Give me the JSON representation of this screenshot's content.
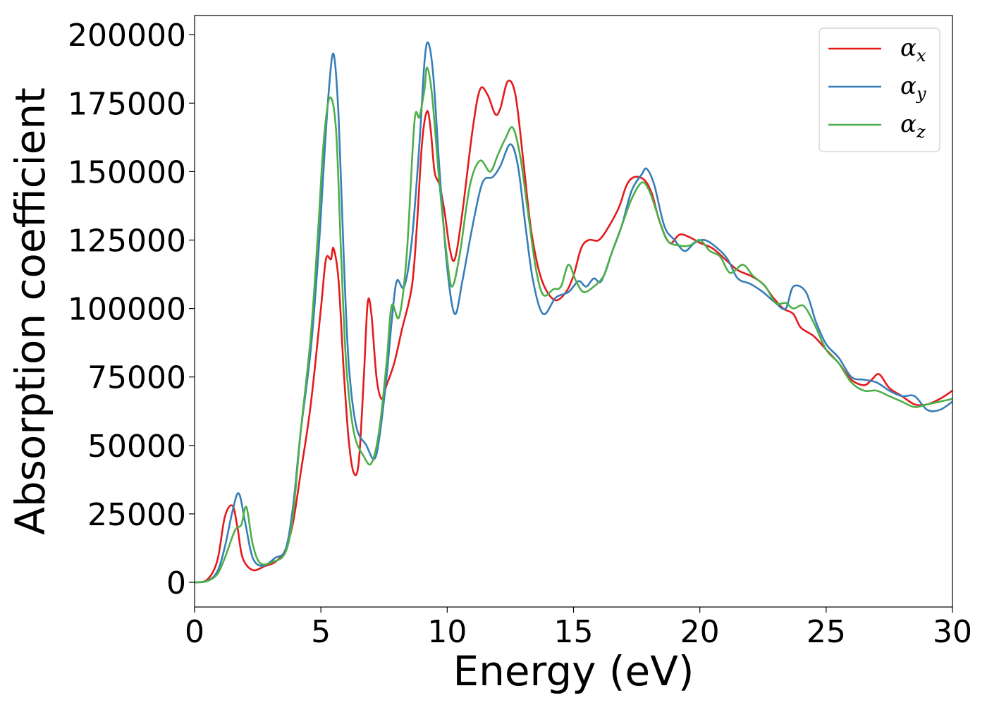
{
  "chart_data": {
    "type": "line",
    "xlabel": "Energy (eV)",
    "ylabel": "Absorption coefficient",
    "xlim": [
      0,
      30
    ],
    "ylim": [
      -9000,
      207000
    ],
    "x_ticks": [
      0,
      5,
      10,
      15,
      20,
      25,
      30
    ],
    "x_tick_labels": [
      "0",
      "5",
      "10",
      "15",
      "20",
      "25",
      "30"
    ],
    "y_ticks": [
      0,
      25000,
      50000,
      75000,
      100000,
      125000,
      150000,
      175000,
      200000
    ],
    "y_tick_labels": [
      "0",
      "25000",
      "50000",
      "75000",
      "100000",
      "125000",
      "150000",
      "175000",
      "200000"
    ],
    "grid": false,
    "legend": {
      "position": "top-right",
      "entries": [
        {
          "base": "α",
          "sub": "x"
        },
        {
          "base": "α",
          "sub": "y"
        },
        {
          "base": "α",
          "sub": "z"
        }
      ]
    },
    "series": [
      {
        "color": "#e41a1c",
        "points": [
          [
            0,
            0
          ],
          [
            0.5,
            1000
          ],
          [
            0.9,
            8000
          ],
          [
            1.2,
            24000
          ],
          [
            1.5,
            28000
          ],
          [
            1.7,
            20000
          ],
          [
            1.9,
            9000
          ],
          [
            2.3,
            4500
          ],
          [
            2.8,
            6000
          ],
          [
            3.2,
            7500
          ],
          [
            3.6,
            12000
          ],
          [
            3.9,
            22000
          ],
          [
            4.2,
            40000
          ],
          [
            4.6,
            65000
          ],
          [
            5.0,
            100000
          ],
          [
            5.2,
            118000
          ],
          [
            5.4,
            118000
          ],
          [
            5.5,
            122000
          ],
          [
            5.7,
            110000
          ],
          [
            5.9,
            78000
          ],
          [
            6.1,
            52000
          ],
          [
            6.3,
            40000
          ],
          [
            6.5,
            44000
          ],
          [
            6.7,
            75000
          ],
          [
            6.85,
            102000
          ],
          [
            7.0,
            98000
          ],
          [
            7.2,
            75000
          ],
          [
            7.4,
            67000
          ],
          [
            7.6,
            72000
          ],
          [
            7.9,
            80000
          ],
          [
            8.2,
            92000
          ],
          [
            8.6,
            108000
          ],
          [
            8.8,
            130000
          ],
          [
            9.0,
            160000
          ],
          [
            9.2,
            172000
          ],
          [
            9.35,
            165000
          ],
          [
            9.5,
            150000
          ],
          [
            9.7,
            145000
          ],
          [
            9.9,
            135000
          ],
          [
            10.1,
            122000
          ],
          [
            10.3,
            118000
          ],
          [
            10.6,
            135000
          ],
          [
            11.0,
            165000
          ],
          [
            11.3,
            180000
          ],
          [
            11.6,
            178000
          ],
          [
            11.9,
            171000
          ],
          [
            12.1,
            173000
          ],
          [
            12.4,
            183000
          ],
          [
            12.7,
            178000
          ],
          [
            13.0,
            155000
          ],
          [
            13.3,
            130000
          ],
          [
            13.6,
            115000
          ],
          [
            13.9,
            107000
          ],
          [
            14.3,
            103000
          ],
          [
            14.7,
            106000
          ],
          [
            15.0,
            112000
          ],
          [
            15.3,
            122000
          ],
          [
            15.6,
            125000
          ],
          [
            16.0,
            125000
          ],
          [
            16.4,
            130000
          ],
          [
            16.8,
            137000
          ],
          [
            17.1,
            145000
          ],
          [
            17.4,
            148000
          ],
          [
            17.8,
            147000
          ],
          [
            18.1,
            142000
          ],
          [
            18.4,
            132000
          ],
          [
            18.8,
            124000
          ],
          [
            19.2,
            127000
          ],
          [
            19.6,
            126000
          ],
          [
            20.0,
            124000
          ],
          [
            20.5,
            122000
          ],
          [
            21.0,
            118000
          ],
          [
            21.5,
            114000
          ],
          [
            22.0,
            112000
          ],
          [
            22.5,
            109000
          ],
          [
            22.9,
            104000
          ],
          [
            23.3,
            100000
          ],
          [
            23.7,
            98000
          ],
          [
            24.0,
            93000
          ],
          [
            24.5,
            90000
          ],
          [
            25.0,
            85000
          ],
          [
            25.5,
            80000
          ],
          [
            26.0,
            74000
          ],
          [
            26.5,
            72000
          ],
          [
            26.8,
            74000
          ],
          [
            27.1,
            76000
          ],
          [
            27.5,
            71000
          ],
          [
            28.0,
            68000
          ],
          [
            28.5,
            65000
          ],
          [
            29.0,
            65000
          ],
          [
            29.5,
            67000
          ],
          [
            30.0,
            70000
          ]
        ]
      },
      {
        "color": "#377eb8",
        "points": [
          [
            0,
            0
          ],
          [
            0.5,
            500
          ],
          [
            0.9,
            4000
          ],
          [
            1.2,
            13000
          ],
          [
            1.5,
            26000
          ],
          [
            1.75,
            32500
          ],
          [
            2.0,
            22000
          ],
          [
            2.3,
            9000
          ],
          [
            2.7,
            6000
          ],
          [
            3.2,
            9000
          ],
          [
            3.6,
            12000
          ],
          [
            3.9,
            28000
          ],
          [
            4.2,
            55000
          ],
          [
            4.6,
            85000
          ],
          [
            4.9,
            120000
          ],
          [
            5.1,
            150000
          ],
          [
            5.3,
            178000
          ],
          [
            5.5,
            193000
          ],
          [
            5.7,
            170000
          ],
          [
            5.9,
            120000
          ],
          [
            6.1,
            80000
          ],
          [
            6.4,
            57000
          ],
          [
            6.8,
            50000
          ],
          [
            7.1,
            45000
          ],
          [
            7.3,
            52000
          ],
          [
            7.6,
            75000
          ],
          [
            7.8,
            95000
          ],
          [
            8.0,
            110000
          ],
          [
            8.3,
            108000
          ],
          [
            8.6,
            125000
          ],
          [
            8.9,
            160000
          ],
          [
            9.1,
            190000
          ],
          [
            9.25,
            197000
          ],
          [
            9.45,
            185000
          ],
          [
            9.7,
            150000
          ],
          [
            10.0,
            115000
          ],
          [
            10.3,
            98000
          ],
          [
            10.6,
            110000
          ],
          [
            11.0,
            130000
          ],
          [
            11.4,
            146000
          ],
          [
            11.8,
            148000
          ],
          [
            12.1,
            152000
          ],
          [
            12.5,
            160000
          ],
          [
            12.8,
            152000
          ],
          [
            13.1,
            130000
          ],
          [
            13.4,
            110000
          ],
          [
            13.8,
            98000
          ],
          [
            14.3,
            104000
          ],
          [
            14.8,
            106000
          ],
          [
            15.2,
            110000
          ],
          [
            15.5,
            108000
          ],
          [
            15.8,
            111000
          ],
          [
            16.1,
            110000
          ],
          [
            16.5,
            120000
          ],
          [
            16.9,
            130000
          ],
          [
            17.3,
            143000
          ],
          [
            17.7,
            149000
          ],
          [
            17.9,
            151000
          ],
          [
            18.2,
            145000
          ],
          [
            18.6,
            130000
          ],
          [
            19.0,
            125000
          ],
          [
            19.4,
            121000
          ],
          [
            19.8,
            124000
          ],
          [
            20.2,
            125000
          ],
          [
            20.7,
            122000
          ],
          [
            21.1,
            118000
          ],
          [
            21.5,
            111000
          ],
          [
            22.0,
            109000
          ],
          [
            22.5,
            106000
          ],
          [
            23.0,
            102000
          ],
          [
            23.4,
            100000
          ],
          [
            23.7,
            108000
          ],
          [
            24.2,
            106000
          ],
          [
            24.6,
            95000
          ],
          [
            25.0,
            87000
          ],
          [
            25.5,
            82000
          ],
          [
            26.0,
            75000
          ],
          [
            26.5,
            74000
          ],
          [
            27.0,
            73000
          ],
          [
            27.5,
            70000
          ],
          [
            28.0,
            68000
          ],
          [
            28.5,
            68000
          ],
          [
            29.0,
            63000
          ],
          [
            29.5,
            63000
          ],
          [
            30.0,
            66000
          ]
        ]
      },
      {
        "color": "#4daf4a",
        "points": [
          [
            0,
            0
          ],
          [
            0.5,
            500
          ],
          [
            0.9,
            3000
          ],
          [
            1.2,
            9000
          ],
          [
            1.6,
            19000
          ],
          [
            1.85,
            21000
          ],
          [
            2.05,
            27500
          ],
          [
            2.3,
            14000
          ],
          [
            2.6,
            7000
          ],
          [
            3.1,
            7500
          ],
          [
            3.6,
            11000
          ],
          [
            3.9,
            25000
          ],
          [
            4.2,
            55000
          ],
          [
            4.6,
            90000
          ],
          [
            4.9,
            130000
          ],
          [
            5.1,
            160000
          ],
          [
            5.35,
            177000
          ],
          [
            5.6,
            165000
          ],
          [
            5.8,
            120000
          ],
          [
            6.0,
            80000
          ],
          [
            6.3,
            55000
          ],
          [
            6.7,
            46000
          ],
          [
            7.0,
            43500
          ],
          [
            7.3,
            55000
          ],
          [
            7.6,
            80000
          ],
          [
            7.8,
            101000
          ],
          [
            8.1,
            97000
          ],
          [
            8.4,
            120000
          ],
          [
            8.7,
            168000
          ],
          [
            8.9,
            170000
          ],
          [
            9.1,
            180000
          ],
          [
            9.2,
            188000
          ],
          [
            9.4,
            178000
          ],
          [
            9.7,
            145000
          ],
          [
            10.0,
            118000
          ],
          [
            10.2,
            108000
          ],
          [
            10.5,
            120000
          ],
          [
            10.9,
            145000
          ],
          [
            11.3,
            154000
          ],
          [
            11.7,
            150000
          ],
          [
            12.0,
            156000
          ],
          [
            12.3,
            162000
          ],
          [
            12.6,
            166000
          ],
          [
            12.9,
            155000
          ],
          [
            13.2,
            135000
          ],
          [
            13.5,
            115000
          ],
          [
            13.8,
            105000
          ],
          [
            14.2,
            107000
          ],
          [
            14.5,
            108000
          ],
          [
            14.8,
            116000
          ],
          [
            15.1,
            110000
          ],
          [
            15.4,
            106000
          ],
          [
            15.8,
            108000
          ],
          [
            16.2,
            112000
          ],
          [
            16.5,
            120000
          ],
          [
            16.9,
            130000
          ],
          [
            17.3,
            140000
          ],
          [
            17.7,
            146000
          ],
          [
            18.0,
            143000
          ],
          [
            18.3,
            135000
          ],
          [
            18.7,
            125000
          ],
          [
            19.2,
            123000
          ],
          [
            19.6,
            123000
          ],
          [
            20.0,
            125000
          ],
          [
            20.4,
            121000
          ],
          [
            20.8,
            119000
          ],
          [
            21.2,
            113000
          ],
          [
            21.7,
            116000
          ],
          [
            22.1,
            112000
          ],
          [
            22.6,
            108000
          ],
          [
            23.0,
            102000
          ],
          [
            23.4,
            102000
          ],
          [
            23.7,
            100000
          ],
          [
            24.1,
            101000
          ],
          [
            24.5,
            95000
          ],
          [
            25.0,
            85000
          ],
          [
            25.5,
            80000
          ],
          [
            26.0,
            73000
          ],
          [
            26.5,
            70000
          ],
          [
            27.0,
            70000
          ],
          [
            27.5,
            68000
          ],
          [
            28.0,
            66000
          ],
          [
            28.5,
            64000
          ],
          [
            29.0,
            65000
          ],
          [
            29.5,
            66000
          ],
          [
            30.0,
            67000
          ]
        ]
      }
    ]
  }
}
